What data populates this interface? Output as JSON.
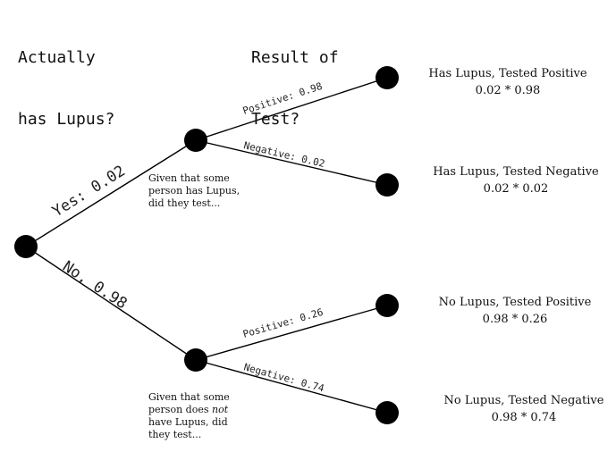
{
  "headers": {
    "actual": [
      "Actually",
      "has Lupus?"
    ],
    "result": [
      "Result of",
      "Test?"
    ]
  },
  "branches": {
    "yes": "Yes: 0.02",
    "no": "No, 0.98",
    "yes_positive": "Positive: 0.98",
    "yes_negative": "Negative: 0.02",
    "no_positive": "Positive: 0.26",
    "no_negative": "Negative: 0.74"
  },
  "notes": {
    "has_lupus": [
      "Given that some",
      "person has Lupus,",
      "did they test..."
    ],
    "no_lupus": {
      "line1": "Given that some",
      "line2_pre": "person does ",
      "line2_em": "not",
      "line3": "have Lupus, did",
      "line4": "they test..."
    }
  },
  "outcomes": [
    {
      "label": "Has Lupus, Tested Positive",
      "calc": "0.02 * 0.98"
    },
    {
      "label": "Has Lupus, Tested Negative",
      "calc": "0.02 * 0.02"
    },
    {
      "label": "No Lupus, Tested Positive",
      "calc": "0.98 * 0.26"
    },
    {
      "label": "No Lupus, Tested Negative",
      "calc": "0.98 * 0.74"
    }
  ],
  "colors": {
    "node": "#000000",
    "edge": "#000000",
    "text": "#222222"
  }
}
